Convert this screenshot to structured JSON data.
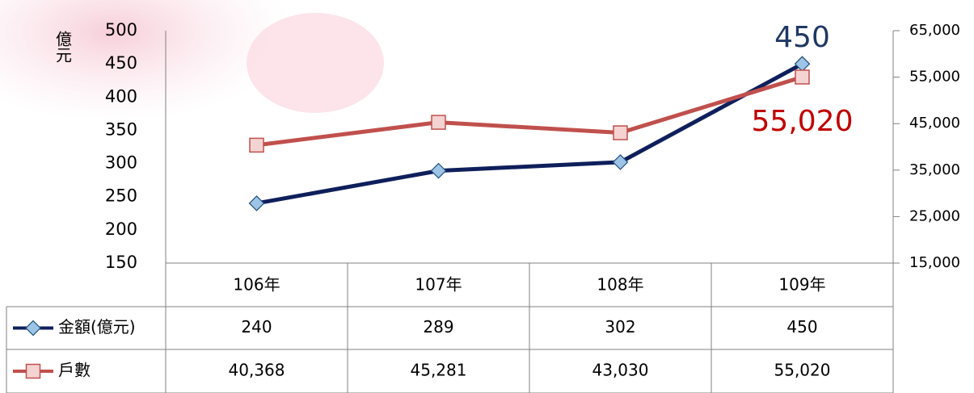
{
  "chart_data": {
    "type": "line",
    "y_label": "億元",
    "categories": [
      "106年",
      "107年",
      "108年",
      "109年"
    ],
    "series": [
      {
        "name": "金額(億元)",
        "color": "#0e1f5b",
        "marker_color": "#9dc3e6",
        "values": [
          240,
          289,
          302,
          450
        ]
      },
      {
        "name": "戶數",
        "color": "#c0504d",
        "marker_color": "#f4d3d2",
        "axis": "y2",
        "values": [
          40368,
          45281,
          43030,
          55020
        ],
        "value_labels": [
          "40,368",
          "45,281",
          "43,030",
          "55,020"
        ]
      }
    ],
    "ylim": [
      150,
      500
    ],
    "yticks": [
      150,
      200,
      250,
      300,
      350,
      400,
      450,
      500
    ],
    "y2lim": [
      15000,
      65000
    ],
    "y2ticks": [
      {
        "value": 15000,
        "label": "15,000"
      },
      {
        "value": 25000,
        "label": "25,000"
      },
      {
        "value": 35000,
        "label": "35,000"
      },
      {
        "value": 45000,
        "label": "45,000"
      },
      {
        "value": 55000,
        "label": "55,000"
      },
      {
        "value": 65000,
        "label": "65,000"
      }
    ],
    "data_table": true
  }
}
